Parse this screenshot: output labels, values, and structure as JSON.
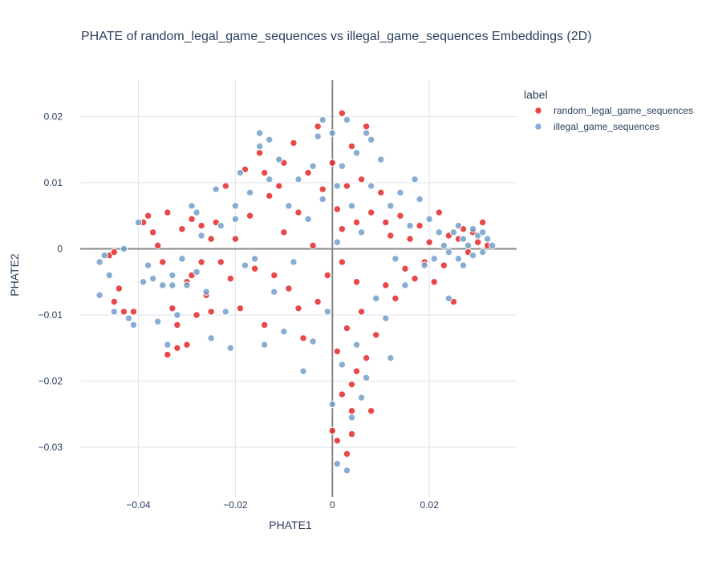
{
  "chart_data": {
    "type": "scatter",
    "title": "PHATE of random_legal_game_sequences vs illegal_game_sequences Embeddings (2D)",
    "xlabel": "PHATE1",
    "ylabel": "PHATE2",
    "xlim": [
      -0.052,
      0.038
    ],
    "ylim": [
      -0.0375,
      0.0255
    ],
    "xticks": [
      -0.04,
      -0.02,
      0,
      0.02
    ],
    "xtick_labels": [
      "−0.04",
      "−0.02",
      "0",
      "0.02"
    ],
    "yticks": [
      -0.03,
      -0.02,
      -0.01,
      0,
      0.01,
      0.02
    ],
    "ytick_labels": [
      "−0.03",
      "−0.02",
      "−0.01",
      "0",
      "0.01",
      "0.02"
    ],
    "grid": true,
    "legend_title": "label",
    "legend_position": "top-right",
    "series": [
      {
        "name": "random_legal_game_sequences",
        "color": "#e41a1c",
        "points": [
          [
            -0.046,
            -0.001
          ],
          [
            -0.045,
            -0.0005
          ],
          [
            -0.045,
            -0.008
          ],
          [
            -0.044,
            -0.006
          ],
          [
            -0.043,
            -0.0095
          ],
          [
            -0.041,
            -0.0095
          ],
          [
            -0.039,
            0.004
          ],
          [
            -0.038,
            0.005
          ],
          [
            -0.037,
            0.0025
          ],
          [
            -0.036,
            0.0005
          ],
          [
            -0.035,
            -0.002
          ],
          [
            -0.034,
            0.0055
          ],
          [
            -0.033,
            -0.009
          ],
          [
            -0.032,
            -0.0115
          ],
          [
            -0.034,
            -0.016
          ],
          [
            -0.032,
            -0.015
          ],
          [
            -0.03,
            -0.0145
          ],
          [
            -0.029,
            0.0045
          ],
          [
            -0.029,
            -0.004
          ],
          [
            -0.028,
            -0.01
          ],
          [
            -0.027,
            0.0035
          ],
          [
            -0.026,
            -0.007
          ],
          [
            -0.025,
            -0.0095
          ],
          [
            -0.024,
            0.004
          ],
          [
            -0.023,
            -0.002
          ],
          [
            -0.022,
            0.0095
          ],
          [
            -0.021,
            -0.0045
          ],
          [
            -0.02,
            0.0015
          ],
          [
            -0.019,
            -0.009
          ],
          [
            -0.018,
            0.012
          ],
          [
            -0.017,
            0.005
          ],
          [
            -0.016,
            -0.003
          ],
          [
            -0.015,
            0.0145
          ],
          [
            -0.014,
            -0.0115
          ],
          [
            -0.013,
            0.008
          ],
          [
            -0.012,
            -0.004
          ],
          [
            -0.011,
            0.0095
          ],
          [
            -0.01,
            0.0025
          ],
          [
            -0.009,
            -0.006
          ],
          [
            -0.008,
            0.016
          ],
          [
            -0.007,
            0.0055
          ],
          [
            -0.006,
            -0.0135
          ],
          [
            -0.005,
            0.0115
          ],
          [
            -0.004,
            0.0005
          ],
          [
            -0.003,
            -0.008
          ],
          [
            -0.003,
            0.0185
          ],
          [
            -0.002,
            0.009
          ],
          [
            -0.001,
            -0.004
          ],
          [
            0.0,
            0.013
          ],
          [
            0.001,
            -0.0155
          ],
          [
            0.001,
            0.006
          ],
          [
            0.002,
            0.0205
          ],
          [
            0.002,
            -0.002
          ],
          [
            0.003,
            0.0095
          ],
          [
            0.003,
            -0.012
          ],
          [
            0.004,
            0.0155
          ],
          [
            0.004,
            -0.0205
          ],
          [
            0.005,
            0.004
          ],
          [
            0.005,
            -0.0185
          ],
          [
            0.006,
            0.0105
          ],
          [
            0.006,
            -0.0095
          ],
          [
            0.007,
            0.0185
          ],
          [
            0.007,
            -0.0165
          ],
          [
            0.008,
            0.0055
          ],
          [
            0.008,
            -0.0245
          ],
          [
            0.009,
            -0.013
          ],
          [
            0.01,
            0.0085
          ],
          [
            0.011,
            -0.0055
          ],
          [
            0.012,
            0.002
          ],
          [
            0.013,
            -0.0075
          ],
          [
            0.014,
            0.005
          ],
          [
            0.015,
            -0.003
          ],
          [
            0.016,
            0.0015
          ],
          [
            0.017,
            -0.0045
          ],
          [
            0.018,
            0.0035
          ],
          [
            0.019,
            -0.002
          ],
          [
            0.02,
            0.001
          ],
          [
            0.021,
            -0.005
          ],
          [
            0.022,
            0.0055
          ],
          [
            0.023,
            -0.0025
          ],
          [
            0.024,
            0.002
          ],
          [
            0.025,
            -0.008
          ],
          [
            0.026,
            0.0015
          ],
          [
            0.027,
            0.003
          ],
          [
            0.028,
            -0.0005
          ],
          [
            0.029,
            0.0025
          ],
          [
            0.03,
            0.001
          ],
          [
            0.031,
            0.004
          ],
          [
            0.032,
            0.0005
          ],
          [
            0.0,
            -0.0275
          ],
          [
            0.001,
            -0.029
          ],
          [
            0.003,
            -0.031
          ],
          [
            0.004,
            -0.028
          ],
          [
            0.002,
            -0.022
          ],
          [
            0.004,
            -0.0245
          ],
          [
            -0.031,
            0.003
          ],
          [
            -0.03,
            -0.005
          ],
          [
            -0.027,
            -0.002
          ],
          [
            -0.025,
            0.0015
          ],
          [
            -0.014,
            0.0115
          ],
          [
            -0.01,
            0.013
          ],
          [
            -0.007,
            -0.009
          ],
          [
            0.002,
            0.003
          ],
          [
            0.005,
            -0.005
          ],
          [
            0.011,
            0.004
          ]
        ]
      },
      {
        "name": "illegal_game_sequences",
        "color": "#6a99c8",
        "points": [
          [
            -0.048,
            -0.002
          ],
          [
            -0.048,
            -0.007
          ],
          [
            -0.047,
            -0.001
          ],
          [
            -0.046,
            -0.004
          ],
          [
            -0.045,
            -0.0095
          ],
          [
            -0.043,
            0.0
          ],
          [
            -0.042,
            -0.0105
          ],
          [
            -0.041,
            -0.0115
          ],
          [
            -0.04,
            0.004
          ],
          [
            -0.039,
            -0.005
          ],
          [
            -0.038,
            -0.0025
          ],
          [
            -0.037,
            -0.0045
          ],
          [
            -0.036,
            -0.011
          ],
          [
            -0.035,
            -0.0055
          ],
          [
            -0.034,
            -0.0145
          ],
          [
            -0.033,
            -0.004
          ],
          [
            -0.032,
            -0.01
          ],
          [
            -0.031,
            -0.0015
          ],
          [
            -0.03,
            -0.0055
          ],
          [
            -0.029,
            0.0065
          ],
          [
            -0.028,
            -0.0035
          ],
          [
            -0.027,
            0.002
          ],
          [
            -0.026,
            -0.0065
          ],
          [
            -0.025,
            -0.0135
          ],
          [
            -0.024,
            0.009
          ],
          [
            -0.023,
            0.0035
          ],
          [
            -0.022,
            -0.0095
          ],
          [
            -0.021,
            -0.015
          ],
          [
            -0.02,
            0.0065
          ],
          [
            -0.019,
            0.0115
          ],
          [
            -0.018,
            -0.0025
          ],
          [
            -0.017,
            0.0085
          ],
          [
            -0.016,
            -0.0015
          ],
          [
            -0.015,
            0.0175
          ],
          [
            -0.014,
            -0.0145
          ],
          [
            -0.013,
            0.0105
          ],
          [
            -0.012,
            -0.0065
          ],
          [
            -0.011,
            0.0135
          ],
          [
            -0.01,
            -0.0125
          ],
          [
            -0.009,
            0.0065
          ],
          [
            -0.008,
            -0.002
          ],
          [
            -0.007,
            0.0105
          ],
          [
            -0.006,
            -0.0185
          ],
          [
            -0.005,
            0.0045
          ],
          [
            -0.004,
            -0.014
          ],
          [
            -0.003,
            0.017
          ],
          [
            -0.002,
            0.0075
          ],
          [
            -0.001,
            -0.0095
          ],
          [
            0.0,
            0.0175
          ],
          [
            0.0,
            -0.0235
          ],
          [
            0.001,
            0.001
          ],
          [
            0.001,
            -0.0325
          ],
          [
            0.002,
            0.0125
          ],
          [
            0.002,
            -0.0175
          ],
          [
            0.003,
            0.0195
          ],
          [
            0.003,
            -0.0335
          ],
          [
            0.004,
            -0.0255
          ],
          [
            0.005,
            0.0145
          ],
          [
            0.005,
            -0.0145
          ],
          [
            0.006,
            0.0025
          ],
          [
            0.006,
            -0.0225
          ],
          [
            0.007,
            0.0175
          ],
          [
            0.007,
            -0.0195
          ],
          [
            0.008,
            0.0095
          ],
          [
            0.009,
            -0.0075
          ],
          [
            0.01,
            0.0135
          ],
          [
            0.011,
            -0.0105
          ],
          [
            0.012,
            0.0065
          ],
          [
            0.013,
            -0.0015
          ],
          [
            0.014,
            0.0085
          ],
          [
            0.015,
            -0.0055
          ],
          [
            0.016,
            0.0035
          ],
          [
            0.017,
            0.0105
          ],
          [
            0.018,
            0.0075
          ],
          [
            0.019,
            -0.0025
          ],
          [
            0.02,
            0.0045
          ],
          [
            0.021,
            -0.0015
          ],
          [
            0.022,
            0.0025
          ],
          [
            0.023,
            0.0005
          ],
          [
            0.024,
            -0.0005
          ],
          [
            0.025,
            0.0025
          ],
          [
            0.026,
            -0.0015
          ],
          [
            0.027,
            0.0015
          ],
          [
            0.028,
            0.0005
          ],
          [
            0.029,
            -0.001
          ],
          [
            0.03,
            0.002
          ],
          [
            0.031,
            -0.0005
          ],
          [
            0.032,
            0.0015
          ],
          [
            0.033,
            0.0005
          ],
          [
            0.026,
            0.0035
          ],
          [
            0.027,
            -0.0025
          ],
          [
            0.029,
            0.003
          ],
          [
            0.031,
            0.0025
          ],
          [
            0.024,
            -0.0075
          ],
          [
            -0.015,
            0.0155
          ],
          [
            -0.013,
            0.0165
          ],
          [
            -0.004,
            0.0125
          ],
          [
            -0.002,
            0.0195
          ],
          [
            0.001,
            0.0095
          ],
          [
            0.004,
            0.0065
          ],
          [
            0.008,
            0.0165
          ],
          [
            -0.028,
            0.0055
          ],
          [
            -0.033,
            -0.0055
          ],
          [
            -0.02,
            0.0045
          ],
          [
            0.012,
            -0.0165
          ]
        ]
      }
    ]
  }
}
